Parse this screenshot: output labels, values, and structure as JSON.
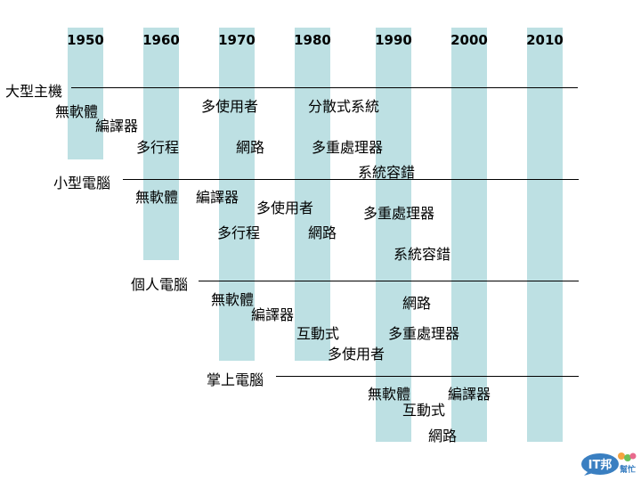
{
  "years": [
    "1950",
    "1960",
    "1970",
    "1980",
    "1990",
    "2000",
    "2010"
  ],
  "eras": {
    "mainframe": {
      "label": "大型主機",
      "features": [
        "無軟體",
        "編譯器",
        "多使用者",
        "分散式系統",
        "多行程",
        "網路",
        "多重處理器",
        "系統容錯"
      ]
    },
    "minicomputer": {
      "label": "小型電腦",
      "features": [
        "無軟體",
        "編譯器",
        "多使用者",
        "多重處理器",
        "多行程",
        "網路",
        "系統容錯"
      ]
    },
    "pc": {
      "label": "個人電腦",
      "features": [
        "無軟體",
        "網路",
        "編譯器",
        "互動式",
        "多重處理器",
        "多使用者"
      ]
    },
    "handheld": {
      "label": "掌上電腦",
      "features": [
        "無軟體",
        "編譯器",
        "互動式",
        "網路"
      ]
    }
  },
  "logo": {
    "text": "IT邦",
    "subtext": "幫忙",
    "color": "#3a7fc1"
  }
}
